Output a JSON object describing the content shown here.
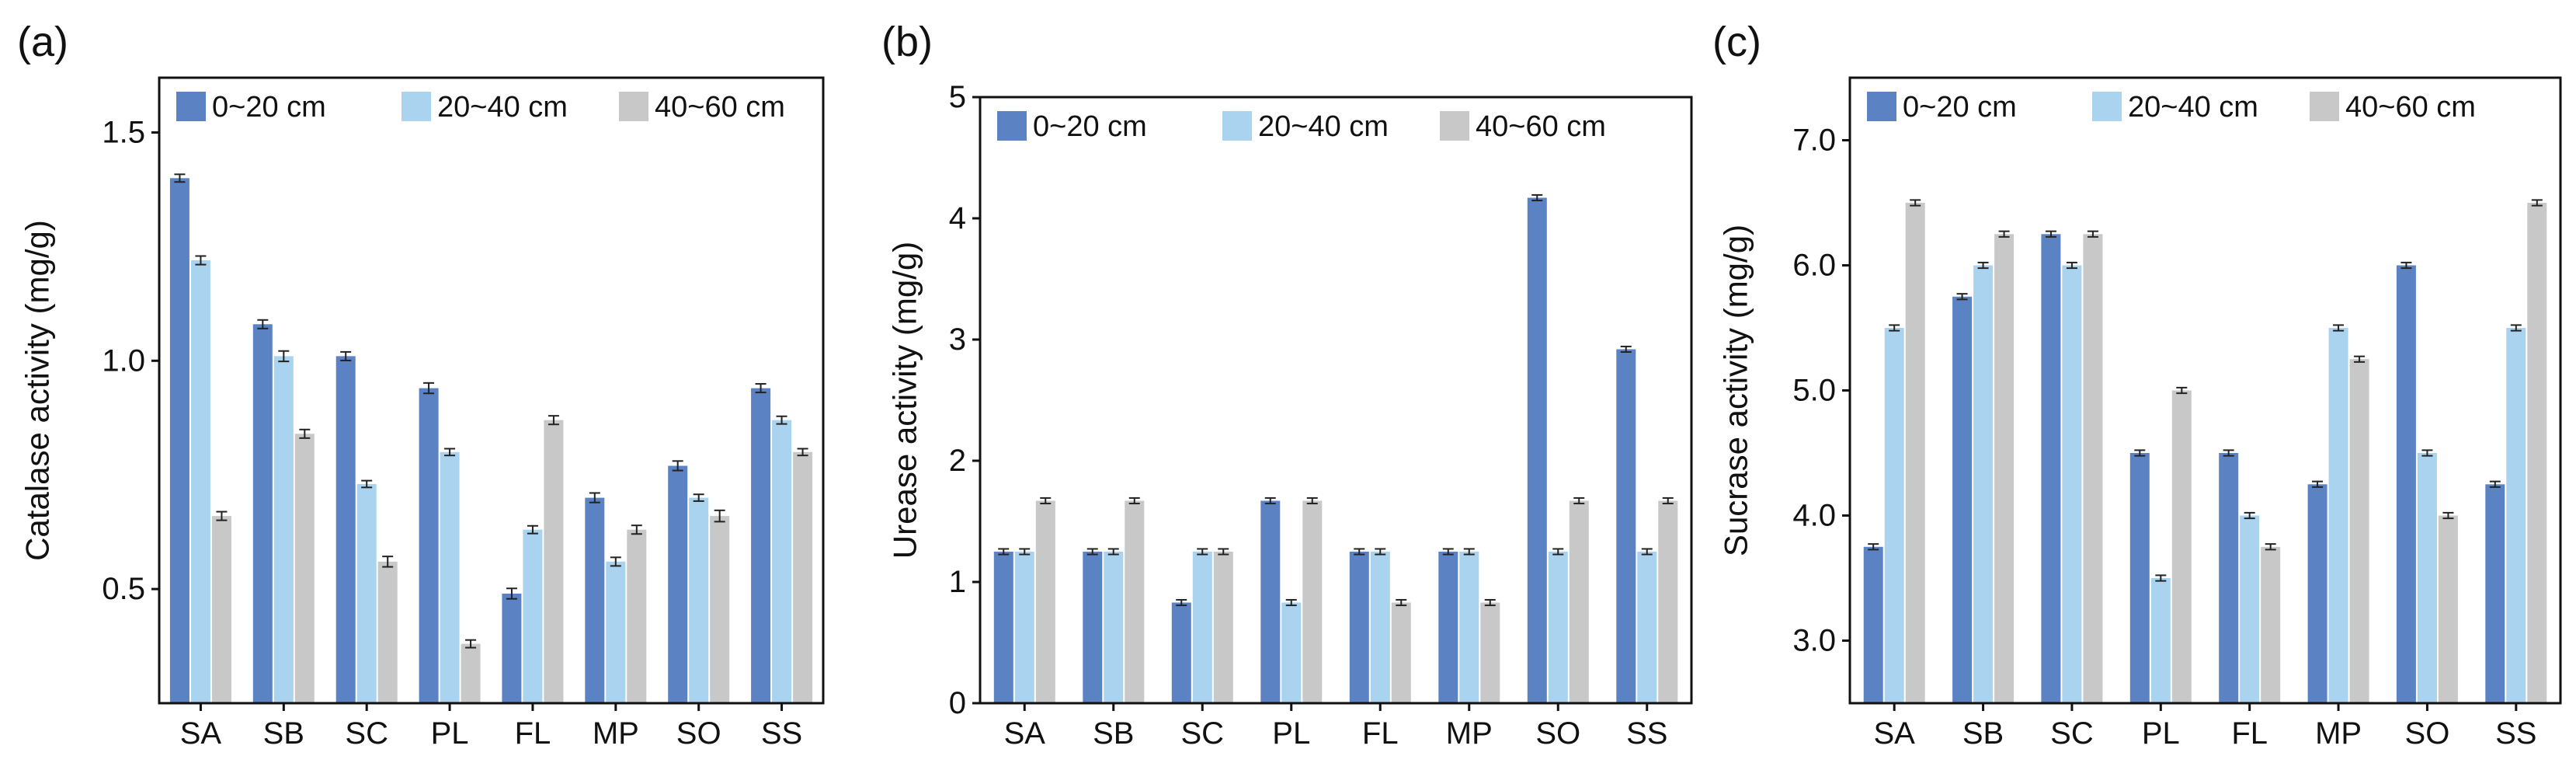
{
  "colors": {
    "c0_20": "#5b83c4",
    "c20_40": "#a9d3ee",
    "c40_60": "#c8c8c8",
    "axis": "#111111",
    "err": "#222222"
  },
  "chart_data": [
    {
      "type": "bar",
      "panel_label": "(a)",
      "ylabel": "Catalase activity (mg/g)",
      "ylim": [
        0.25,
        1.62
      ],
      "yticks": [
        0.5,
        1.0,
        1.5
      ],
      "ytick_labels": [
        "0.5",
        "1.0",
        "1.5"
      ],
      "categories": [
        "SA",
        "SB",
        "SC",
        "PL",
        "FL",
        "MP",
        "SO",
        "SS"
      ],
      "legend_position": "top",
      "series": [
        {
          "name": "0~20 cm",
          "values": [
            1.4,
            1.08,
            1.01,
            0.94,
            0.49,
            0.7,
            0.77,
            0.94
          ],
          "errors": [
            0.005,
            0.006,
            0.006,
            0.008,
            0.008,
            0.007,
            0.007,
            0.006
          ]
        },
        {
          "name": "20~40 cm",
          "values": [
            1.22,
            1.01,
            0.73,
            0.8,
            0.63,
            0.56,
            0.7,
            0.87
          ],
          "errors": [
            0.006,
            0.008,
            0.004,
            0.004,
            0.005,
            0.006,
            0.004,
            0.005
          ]
        },
        {
          "name": "40~60 cm",
          "values": [
            0.66,
            0.84,
            0.56,
            0.38,
            0.87,
            0.63,
            0.66,
            0.8
          ],
          "errors": [
            0.006,
            0.006,
            0.008,
            0.005,
            0.006,
            0.006,
            0.009,
            0.004
          ]
        }
      ]
    },
    {
      "type": "bar",
      "panel_label": "(b)",
      "ylabel": "Urease activity (mg/g)",
      "ylim": [
        0,
        5
      ],
      "yticks": [
        0,
        1,
        2,
        3,
        4,
        5
      ],
      "ytick_labels": [
        "0",
        "1",
        "2",
        "3",
        "4",
        "5"
      ],
      "categories": [
        "SA",
        "SB",
        "SC",
        "PL",
        "FL",
        "MP",
        "SO",
        "SS"
      ],
      "legend_position": "top",
      "series": [
        {
          "name": "0~20 cm",
          "values": [
            1.25,
            1.25,
            0.83,
            1.67,
            1.25,
            1.25,
            4.17,
            2.92
          ],
          "errors": [
            0.01,
            0.01,
            0.01,
            0.01,
            0.01,
            0.01,
            0.01,
            0.01
          ]
        },
        {
          "name": "20~40 cm",
          "values": [
            1.25,
            1.25,
            1.25,
            0.83,
            1.25,
            1.25,
            1.25,
            1.25
          ],
          "errors": [
            0.01,
            0.01,
            0.01,
            0.01,
            0.01,
            0.01,
            0.01,
            0.01
          ]
        },
        {
          "name": "40~60 cm",
          "values": [
            1.67,
            1.67,
            1.25,
            1.67,
            0.83,
            0.83,
            1.67,
            1.67
          ],
          "errors": [
            0.01,
            0.01,
            0.01,
            0.01,
            0.01,
            0.01,
            0.01,
            0.01
          ]
        }
      ]
    },
    {
      "type": "bar",
      "panel_label": "(c)",
      "ylabel": "Sucrase activity (mg/g)",
      "ylim": [
        2.5,
        7.5
      ],
      "yticks": [
        3.0,
        4.0,
        5.0,
        6.0,
        7.0
      ],
      "ytick_labels": [
        "3.0",
        "4.0",
        "5.0",
        "6.0",
        "7.0"
      ],
      "categories": [
        "SA",
        "SB",
        "SC",
        "PL",
        "FL",
        "MP",
        "SO",
        "SS"
      ],
      "legend_position": "top",
      "series": [
        {
          "name": "0~20 cm",
          "values": [
            3.75,
            5.75,
            6.25,
            4.5,
            4.5,
            4.25,
            6.0,
            4.25
          ],
          "errors": [
            0.01,
            0.01,
            0.01,
            0.01,
            0.01,
            0.01,
            0.01,
            0.01
          ]
        },
        {
          "name": "20~40 cm",
          "values": [
            5.5,
            6.0,
            6.0,
            3.5,
            4.0,
            5.5,
            4.5,
            5.5
          ],
          "errors": [
            0.01,
            0.01,
            0.01,
            0.01,
            0.01,
            0.01,
            0.01,
            0.01
          ]
        },
        {
          "name": "40~60 cm",
          "values": [
            6.5,
            6.25,
            6.25,
            5.0,
            3.75,
            5.25,
            4.0,
            6.5
          ],
          "errors": [
            0.01,
            0.01,
            0.01,
            0.01,
            0.01,
            0.01,
            0.01,
            0.01
          ]
        }
      ]
    }
  ]
}
